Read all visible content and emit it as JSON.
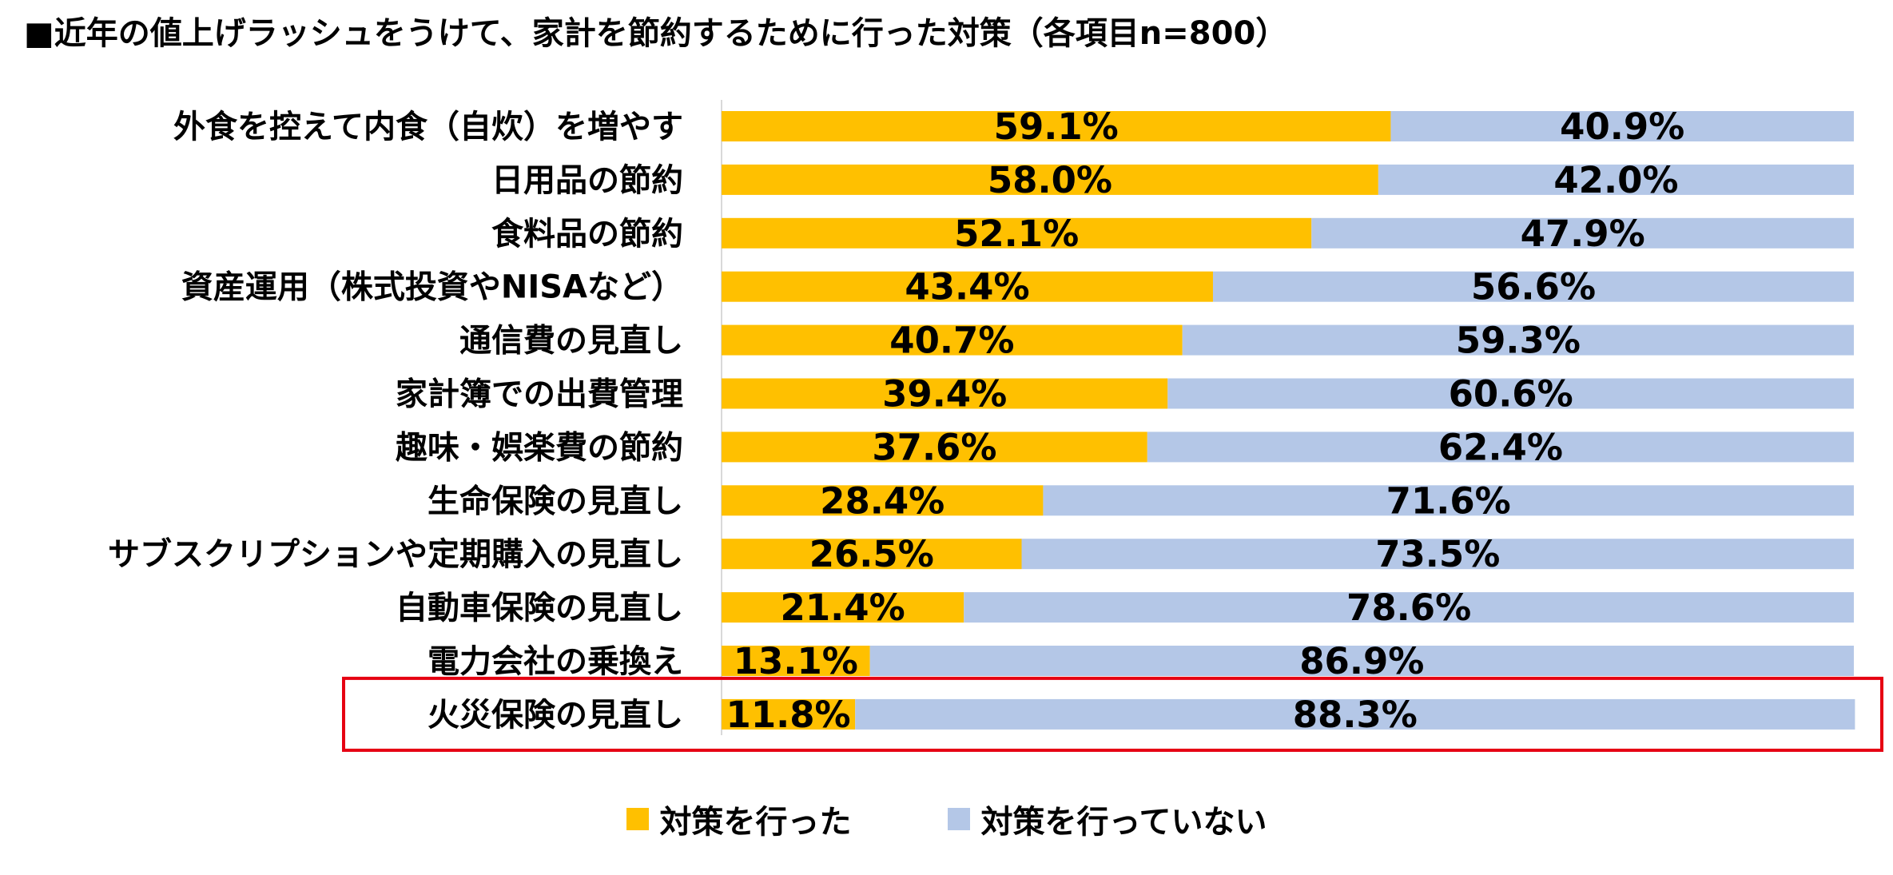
{
  "chart_data": {
    "type": "bar",
    "orientation": "horizontal",
    "stacked": "100%",
    "title": "■近年の値上げラッシュをうけて、家計を節約するために行った対策（各項目n=800）",
    "categories": [
      "外食を控えて内食（自炊）を増やす",
      "日用品の節約",
      "食料品の節約",
      "資産運用（株式投資やNISAなど）",
      "通信費の見直し",
      "家計簿での出費管理",
      "趣味・娯楽費の節約",
      "生命保険の見直し",
      "サブスクリプションや定期購入の見直し",
      "自動車保険の見直し",
      "電力会社の乗換え",
      "火災保険の見直し"
    ],
    "series": [
      {
        "name": "対策を行った",
        "color": "#FFC000",
        "values": [
          59.1,
          58.0,
          52.1,
          43.4,
          40.7,
          39.4,
          37.6,
          28.4,
          26.5,
          21.4,
          13.1,
          11.8
        ],
        "labels": [
          "59.1%",
          "58.0%",
          "52.1%",
          "43.4%",
          "40.7%",
          "39.4%",
          "37.6%",
          "28.4%",
          "26.5%",
          "21.4%",
          "13.1%",
          "11.8%"
        ]
      },
      {
        "name": "対策を行っていない",
        "color": "#B4C7E7",
        "values": [
          40.9,
          42.0,
          47.9,
          56.6,
          59.3,
          60.6,
          62.4,
          71.6,
          73.5,
          78.6,
          86.9,
          88.3
        ],
        "labels": [
          "40.9%",
          "42.0%",
          "47.9%",
          "56.6%",
          "59.3%",
          "60.6%",
          "62.4%",
          "71.6%",
          "73.5%",
          "78.6%",
          "86.9%",
          "88.3%"
        ]
      }
    ],
    "xlim": [
      0,
      100
    ],
    "grid": false,
    "legend_position": "bottom",
    "highlight": {
      "category": "火災保険の見直し",
      "color": "#E60012"
    }
  }
}
